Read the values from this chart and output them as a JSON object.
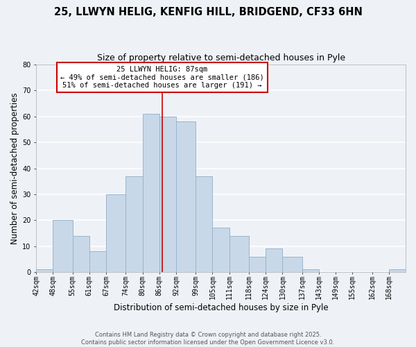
{
  "title": "25, LLWYN HELIG, KENFIG HILL, BRIDGEND, CF33 6HN",
  "subtitle": "Size of property relative to semi-detached houses in Pyle",
  "xlabel": "Distribution of semi-detached houses by size in Pyle",
  "ylabel": "Number of semi-detached properties",
  "bar_color": "#c8d8e8",
  "bar_edge_color": "#9ab4cc",
  "background_color": "#eef2f7",
  "grid_color": "#ffffff",
  "bin_labels": [
    "42sqm",
    "48sqm",
    "55sqm",
    "61sqm",
    "67sqm",
    "74sqm",
    "80sqm",
    "86sqm",
    "92sqm",
    "99sqm",
    "105sqm",
    "111sqm",
    "118sqm",
    "124sqm",
    "130sqm",
    "137sqm",
    "143sqm",
    "149sqm",
    "155sqm",
    "162sqm",
    "168sqm"
  ],
  "bin_edges": [
    42,
    48,
    55,
    61,
    67,
    74,
    80,
    86,
    92,
    99,
    105,
    111,
    118,
    124,
    130,
    137,
    143,
    149,
    155,
    162,
    168,
    174
  ],
  "counts": [
    1,
    20,
    14,
    8,
    30,
    37,
    61,
    60,
    58,
    37,
    17,
    14,
    6,
    9,
    6,
    1,
    0,
    0,
    0,
    0,
    1
  ],
  "vline_x": 87,
  "vline_color": "#cc0000",
  "annotation_title": "25 LLWYN HELIG: 87sqm",
  "annotation_line1": "← 49% of semi-detached houses are smaller (186)",
  "annotation_line2": "51% of semi-detached houses are larger (191) →",
  "annotation_box_color": "#ffffff",
  "annotation_box_edge": "#cc0000",
  "ylim": [
    0,
    80
  ],
  "yticks": [
    0,
    10,
    20,
    30,
    40,
    50,
    60,
    70,
    80
  ],
  "footer_line1": "Contains HM Land Registry data © Crown copyright and database right 2025.",
  "footer_line2": "Contains public sector information licensed under the Open Government Licence v3.0.",
  "title_fontsize": 10.5,
  "subtitle_fontsize": 9,
  "axis_label_fontsize": 8.5,
  "tick_fontsize": 7,
  "annotation_fontsize": 7.5,
  "footer_fontsize": 6
}
